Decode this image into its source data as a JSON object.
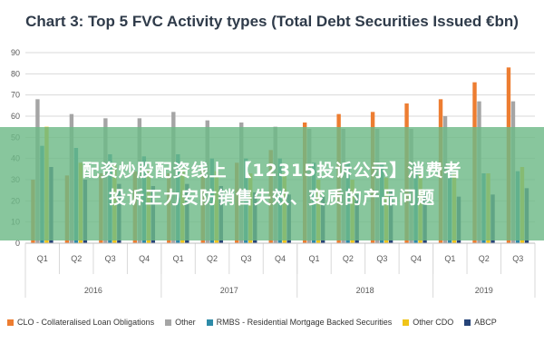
{
  "chart_data": {
    "type": "bar",
    "title": "Chart 3: Top 5 FVC Activity types (Total Debt Securities Issued €bn)",
    "ylim": [
      0,
      90
    ],
    "yticks": [
      0,
      10,
      20,
      30,
      40,
      50,
      60,
      70,
      80,
      90
    ],
    "grid": true,
    "legend_position": "bottom",
    "categories": [
      "Q1",
      "Q2",
      "Q3",
      "Q4",
      "Q1",
      "Q2",
      "Q3",
      "Q4",
      "Q1",
      "Q2",
      "Q3",
      "Q4",
      "Q1",
      "Q2",
      "Q3"
    ],
    "year_groups": [
      {
        "label": "2016",
        "count": 4
      },
      {
        "label": "2017",
        "count": 4
      },
      {
        "label": "2018",
        "count": 4
      },
      {
        "label": "2019",
        "count": 3
      }
    ],
    "series": [
      {
        "name": "CLO - Collateralised Loan Obligations",
        "color": "#ed7d31",
        "values": [
          30,
          32,
          33,
          34,
          33,
          35,
          38,
          44,
          57,
          61,
          62,
          66,
          68,
          76,
          83
        ]
      },
      {
        "name": "Other",
        "color": "#a5a5a5",
        "values": [
          68,
          61,
          59,
          59,
          62,
          58,
          57,
          55,
          54,
          54,
          54,
          54,
          60,
          67,
          67
        ]
      },
      {
        "name": "RMBS - Residential Mortgage Backed Securities",
        "color": "#2e8ba8",
        "values": [
          46,
          45,
          42,
          41,
          42,
          40,
          40,
          40,
          38,
          38,
          38,
          37,
          35,
          33,
          34
        ]
      },
      {
        "name": "Other CDO",
        "color": "#f0c419",
        "values": [
          55,
          38,
          37,
          34,
          35,
          34,
          33,
          33,
          30,
          30,
          31,
          33,
          33,
          33,
          36
        ]
      },
      {
        "name": "ABCP",
        "color": "#264478",
        "values": [
          36,
          30,
          28,
          27,
          28,
          27,
          24,
          23,
          22,
          23,
          25,
          24,
          22,
          23,
          26
        ]
      }
    ]
  },
  "banner": {
    "line1": "配资炒股配资线上 【12315投诉公示】消费者",
    "line2": "投诉王力安防销售失效、变质的产品问题"
  }
}
